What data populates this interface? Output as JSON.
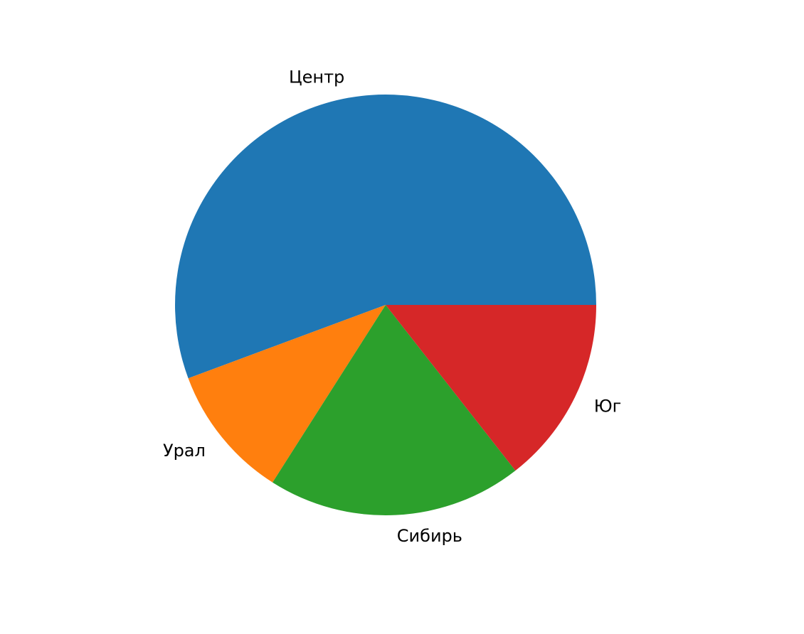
{
  "chart_data": {
    "type": "pie",
    "title": "",
    "categories": [
      "Центр",
      "Урал",
      "Сибирь",
      "Юг"
    ],
    "values": [
      54,
      10,
      19,
      14
    ],
    "colors": [
      "#1f77b4",
      "#ff7f0e",
      "#2ca02c",
      "#d62728"
    ],
    "start_angle": 0,
    "direction": "counterclockwise",
    "legend": "none"
  }
}
